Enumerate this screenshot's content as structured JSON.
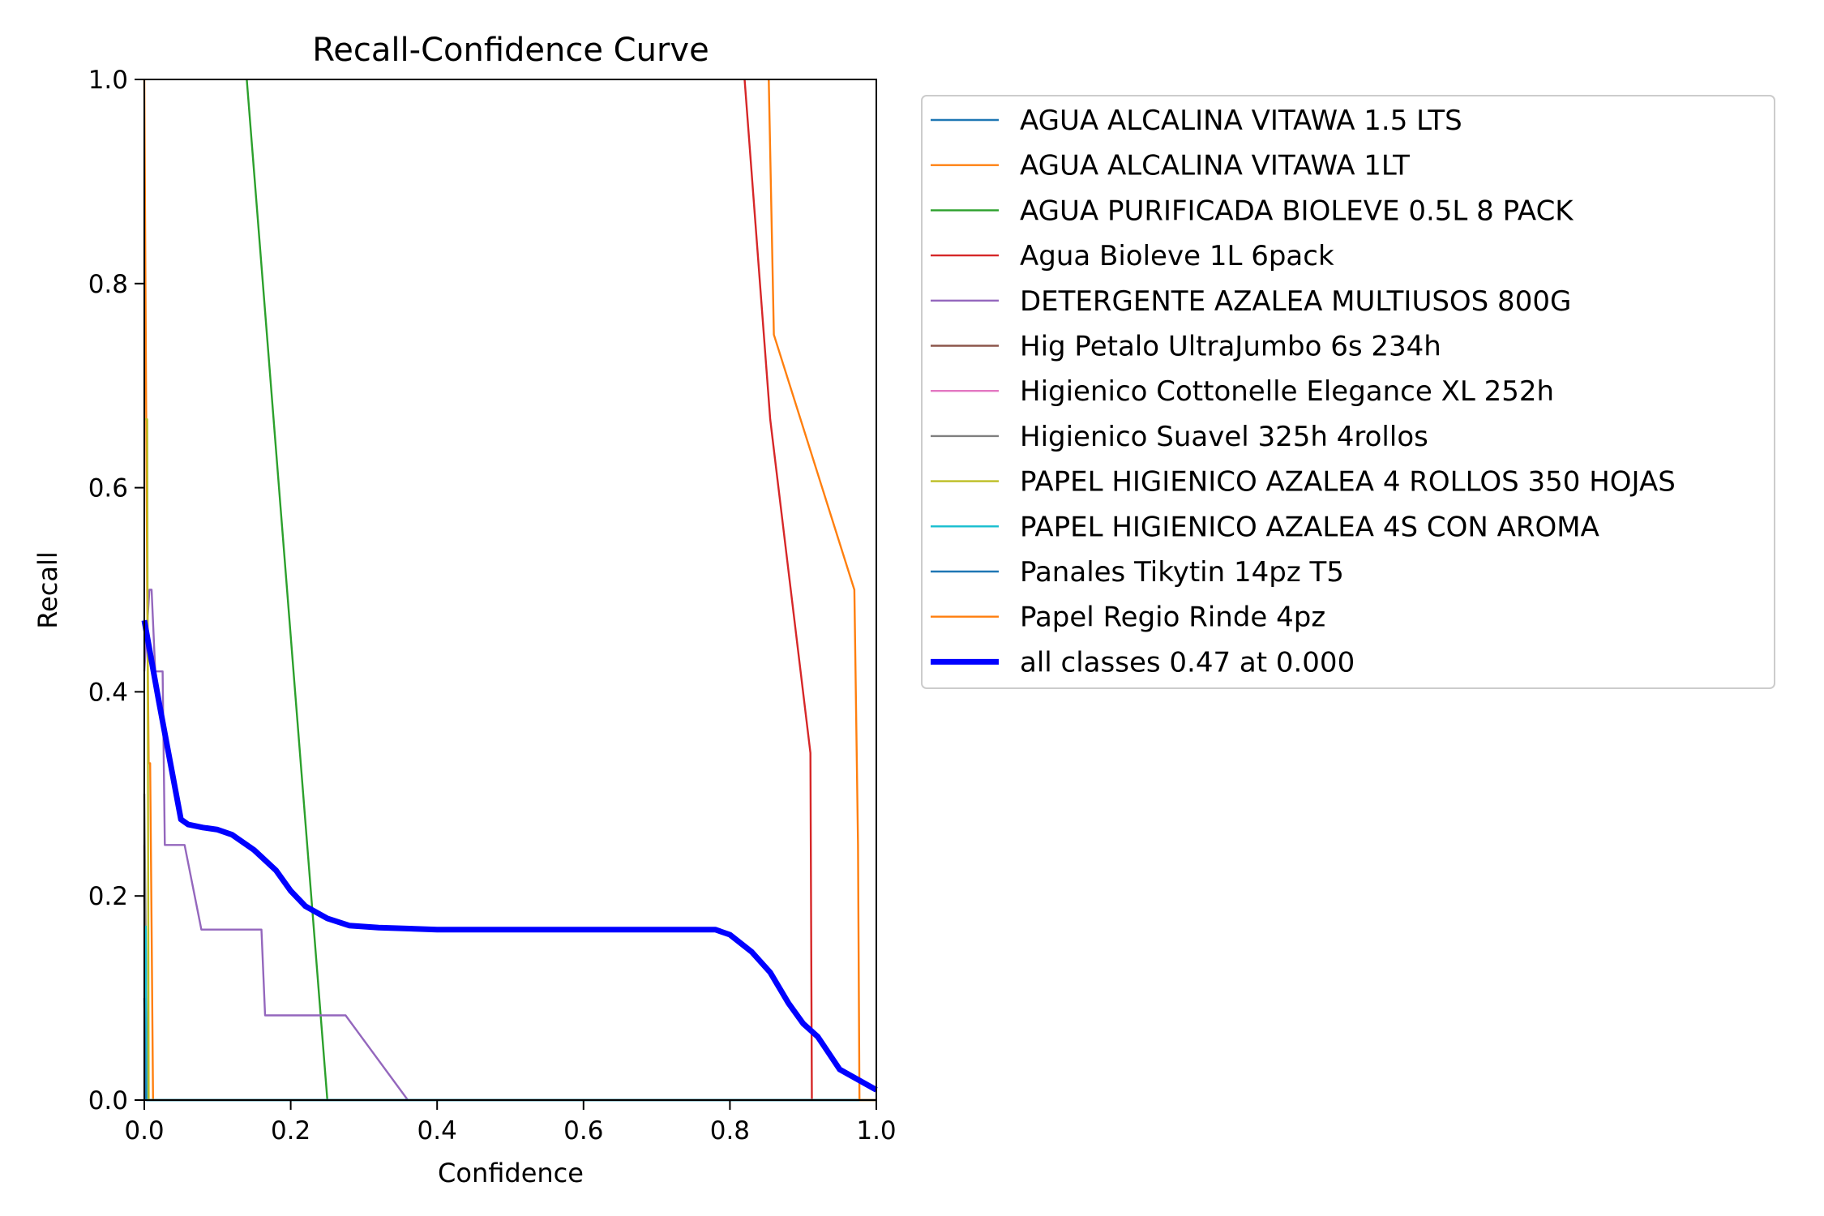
{
  "chart_data": {
    "type": "line",
    "title": "Recall-Confidence Curve",
    "xlabel": "Confidence",
    "ylabel": "Recall",
    "xlim": [
      0,
      1
    ],
    "ylim": [
      0,
      1
    ],
    "x_ticks": [
      "0.0",
      "0.2",
      "0.4",
      "0.6",
      "0.8",
      "1.0"
    ],
    "y_ticks": [
      "0.0",
      "0.2",
      "0.4",
      "0.6",
      "0.8",
      "1.0"
    ],
    "grid": false,
    "legend_position": "outside-right",
    "series": [
      {
        "name": "AGUA ALCALINA VITAWA 1.5 LTS",
        "color": "#1f77b4",
        "x": [
          0,
          0.002,
          0.003,
          0.004,
          1
        ],
        "y": [
          0.17,
          0.17,
          0.05,
          0,
          0
        ]
      },
      {
        "name": "AGUA ALCALINA VITAWA 1LT",
        "color": "#ff7f0e",
        "x": [
          0,
          0.004,
          0.006,
          0.008,
          0.01,
          0.012,
          1
        ],
        "y": [
          1.0,
          0.5,
          0.33,
          0.33,
          0.17,
          0,
          0
        ]
      },
      {
        "name": "AGUA PURIFICADA BIOLEVE 0.5L 8 PACK",
        "color": "#2ca02c",
        "x": [
          0.14,
          0.25,
          1
        ],
        "y": [
          1.0,
          0,
          0
        ]
      },
      {
        "name": "Agua Bioleve 1L 6pack",
        "color": "#d62728",
        "x": [
          0.82,
          0.855,
          0.91,
          0.912,
          1
        ],
        "y": [
          1.0,
          0.667,
          0.34,
          0,
          0
        ]
      },
      {
        "name": "DETERGENTE AZALEA MULTIUSOS 800G",
        "color": "#9467bd",
        "x": [
          0,
          0.007,
          0.01,
          0.015,
          0.02,
          0.025,
          0.028,
          0.055,
          0.078,
          0.16,
          0.165,
          0.275,
          0.36,
          1
        ],
        "y": [
          0.42,
          0.5,
          0.5,
          0.42,
          0.42,
          0.42,
          0.25,
          0.25,
          0.167,
          0.167,
          0.083,
          0.083,
          0,
          0
        ]
      },
      {
        "name": "Hig Petalo UltraJumbo 6s 234h",
        "color": "#8c564b",
        "x": [
          0,
          0.003,
          1
        ],
        "y": [
          0.2,
          0,
          0
        ]
      },
      {
        "name": "Higienico Cottonelle Elegance XL 252h",
        "color": "#e377c2",
        "x": [
          0,
          0.004,
          1
        ],
        "y": [
          0.25,
          0,
          0
        ]
      },
      {
        "name": "Higienico Suavel 325h 4rollos",
        "color": "#7f7f7f",
        "x": [
          0,
          0.004,
          1
        ],
        "y": [
          0.3,
          0,
          0
        ]
      },
      {
        "name": "PAPEL HIGIENICO AZALEA 4 ROLLOS 350 HOJAS",
        "color": "#bcbd22",
        "x": [
          0,
          0.004,
          0.005,
          0.006,
          1
        ],
        "y": [
          0.667,
          0.667,
          0.33,
          0,
          0
        ]
      },
      {
        "name": "PAPEL HIGIENICO AZALEA 4S CON AROMA",
        "color": "#17becf",
        "x": [
          0,
          0.002,
          0.003,
          1
        ],
        "y": [
          0.17,
          0.17,
          0,
          0
        ]
      },
      {
        "name": "Panales Tikytin 14pz T5",
        "color": "#1f77b4",
        "x": [
          0,
          0.002,
          1
        ],
        "y": [
          0.1,
          0,
          0
        ]
      },
      {
        "name": "Papel Regio Rinde 4pz",
        "color": "#ff7f0e",
        "x": [
          0.853,
          0.86,
          0.97,
          0.975,
          0.977,
          1
        ],
        "y": [
          1.0,
          0.75,
          0.5,
          0.25,
          0,
          0
        ]
      },
      {
        "name": "all classes 0.47 at 0.000",
        "color": "#0000ff",
        "thick": true,
        "x": [
          0,
          0.02,
          0.05,
          0.06,
          0.08,
          0.1,
          0.12,
          0.15,
          0.18,
          0.2,
          0.22,
          0.25,
          0.28,
          0.32,
          0.4,
          0.6,
          0.7,
          0.78,
          0.8,
          0.83,
          0.855,
          0.88,
          0.9,
          0.92,
          0.95,
          1.0
        ],
        "y": [
          0.47,
          0.39,
          0.275,
          0.27,
          0.267,
          0.265,
          0.26,
          0.245,
          0.225,
          0.205,
          0.19,
          0.178,
          0.171,
          0.169,
          0.167,
          0.167,
          0.167,
          0.167,
          0.162,
          0.145,
          0.125,
          0.095,
          0.075,
          0.062,
          0.03,
          0.01
        ]
      }
    ]
  }
}
